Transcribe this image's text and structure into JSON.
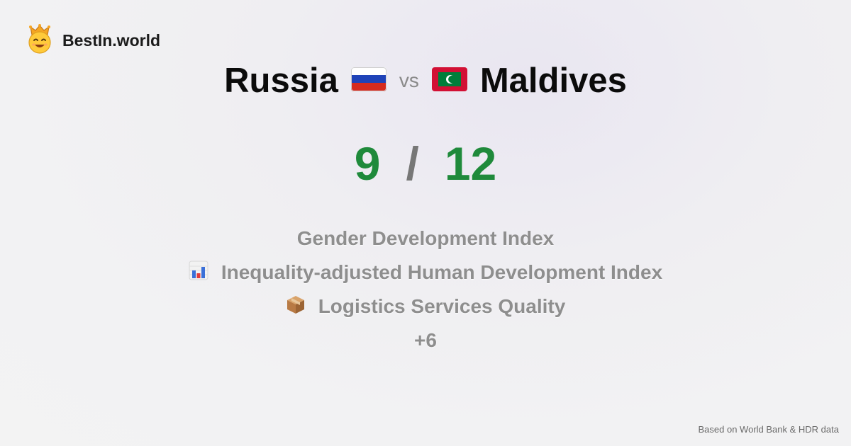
{
  "brand": {
    "name": "BestIn.world",
    "icon": "crowned-smiley-icon"
  },
  "comparison": {
    "left_country": "Russia",
    "left_flag": "russia-flag-icon",
    "vs_label": "vs",
    "right_country": "Maldives",
    "right_flag": "maldives-flag-icon"
  },
  "score": {
    "left": "9",
    "separator": "/",
    "right": "12"
  },
  "metrics": [
    {
      "label": "Gender Development Index",
      "icon": ""
    },
    {
      "label": "Inequality-adjusted Human Development Index",
      "icon": "bar-chart-icon"
    },
    {
      "label": "Logistics Services Quality",
      "icon": "package-box-icon"
    }
  ],
  "more_label": "+6",
  "footer": {
    "source": "Based on World Bank & HDR data"
  },
  "colors": {
    "score_green": "#1f8a3b",
    "muted_gray": "#8e8e8e",
    "title_black": "#0b0b0b"
  }
}
